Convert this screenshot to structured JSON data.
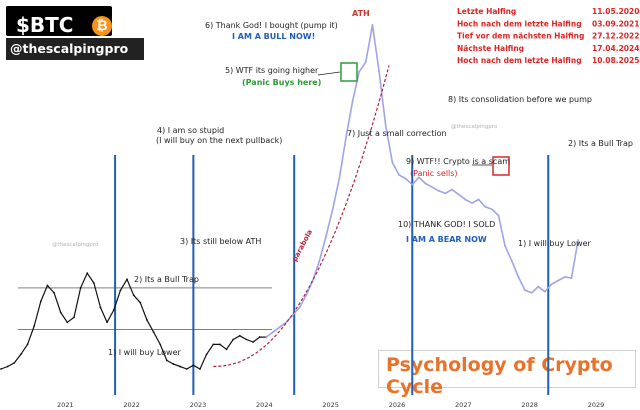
{
  "brand": {
    "ticker": "$BTC",
    "coin_symbol": "₿",
    "handle": "@thescalpingpro"
  },
  "halving_info": [
    {
      "label": "Letzte Halfing",
      "date": "11.05.2020"
    },
    {
      "label": "Hoch nach dem letzte Halfing",
      "date": "03.09.2021"
    },
    {
      "label": "Tief vor dem nächsten Halfing",
      "date": "27.12.2022"
    },
    {
      "label": "Nächste Halfing",
      "date": "17.04.2024"
    },
    {
      "label": "Hoch nach dem letzte Halfing",
      "date": "10.08.2025"
    }
  ],
  "cycle_title": "Psychology of Crypto Cycle",
  "watermark": "@thescalpingpro",
  "colors": {
    "accent_blue": "#1f5fb8",
    "title_orange": "#e8722a",
    "info_red": "#e02424",
    "curve_red": "#b3213a",
    "green_box": "#2e9a3a",
    "red_box": "#d9262b"
  },
  "chart_data": {
    "type": "line",
    "x_axis_ticks": [
      "2021",
      "2022",
      "2023",
      "2024",
      "2025",
      "2026",
      "2027",
      "2028",
      "2029"
    ],
    "grid": false,
    "series": [
      {
        "role": "historical",
        "color": "#111111",
        "x": [
          2020.0,
          2020.1,
          2020.2,
          2020.3,
          2020.4,
          2020.5,
          2020.6,
          2020.7,
          2020.8,
          2020.9,
          2021.0,
          2021.1,
          2021.2,
          2021.3,
          2021.4,
          2021.5,
          2021.6,
          2021.7,
          2021.8,
          2021.9,
          2022.0,
          2022.1,
          2022.2,
          2022.3,
          2022.4,
          2022.5,
          2022.6,
          2022.7,
          2022.8,
          2022.9,
          2023.0,
          2023.1,
          2023.2,
          2023.3,
          2023.4,
          2023.5,
          2023.6,
          2023.7,
          2023.8,
          2023.9,
          2024.0
        ],
        "y": [
          20,
          22,
          25,
          32,
          40,
          55,
          75,
          88,
          82,
          66,
          58,
          62,
          86,
          98,
          90,
          70,
          58,
          68,
          84,
          93,
          80,
          74,
          60,
          50,
          40,
          27,
          24,
          22,
          20,
          23,
          20,
          32,
          40,
          40,
          36,
          44,
          47,
          44,
          42,
          46,
          46
        ]
      },
      {
        "role": "projection",
        "color": "#9fa3e8",
        "x": [
          2024.0,
          2024.1,
          2024.2,
          2024.3,
          2024.4,
          2024.5,
          2024.6,
          2024.7,
          2024.8,
          2024.9,
          2025.0,
          2025.1,
          2025.2,
          2025.3,
          2025.4,
          2025.5,
          2025.6,
          2025.7,
          2025.8,
          2025.9,
          2026.0,
          2026.1,
          2026.2,
          2026.3,
          2026.4,
          2026.5,
          2026.6,
          2026.7,
          2026.8,
          2026.9,
          2027.0,
          2027.1,
          2027.2,
          2027.3,
          2027.4,
          2027.5,
          2027.6,
          2027.7,
          2027.8,
          2027.9,
          2028.0,
          2028.1,
          2028.2,
          2028.3,
          2028.4,
          2028.5,
          2028.6,
          2028.7
        ],
        "y": [
          46,
          50,
          54,
          58,
          64,
          70,
          80,
          92,
          108,
          128,
          150,
          175,
          208,
          238,
          262,
          270,
          300,
          262,
          218,
          188,
          178,
          175,
          170,
          176,
          171,
          168,
          165,
          163,
          166,
          162,
          158,
          155,
          158,
          152,
          150,
          145,
          120,
          108,
          95,
          84,
          82,
          87,
          83,
          89,
          92,
          95,
          94,
          125
        ]
      }
    ],
    "reference_lines": {
      "horizontal": [
        86,
        52
      ],
      "vertical_years": [
        2021.72,
        2022.9,
        2024.42,
        2026.2,
        2028.25
      ]
    },
    "curve_label": "parabola",
    "annotations": [
      {
        "text": "ATH",
        "class": "ath"
      },
      {
        "text": "6) Thank God! I bought (pump it)"
      },
      {
        "text": "I AM A BULL NOW!",
        "class": "blue"
      },
      {
        "text": "5) WTF its going higher"
      },
      {
        "text": "(Panic Buys here)",
        "class": "green"
      },
      {
        "text": "8) Its consolidation before we pump"
      },
      {
        "text": "4)  I am so stupid"
      },
      {
        "text": "(I will buy on the next pullback)"
      },
      {
        "text": "7) Just a small correction"
      },
      {
        "text": "2) Its a Bull Trap"
      },
      {
        "text": "9)  WTF!! Crypto is a scam"
      },
      {
        "text": "(Panic sells)",
        "class": "red"
      },
      {
        "text": "3) Its still below ATH"
      },
      {
        "text": "10) THANK GOD! I SOLD"
      },
      {
        "text": "I AM A BEAR NOW",
        "class": "blue"
      },
      {
        "text": "2) Its a Bull Trap"
      },
      {
        "text": "1) I will buy Lower"
      },
      {
        "text": "1) I will buy Lower"
      }
    ]
  }
}
